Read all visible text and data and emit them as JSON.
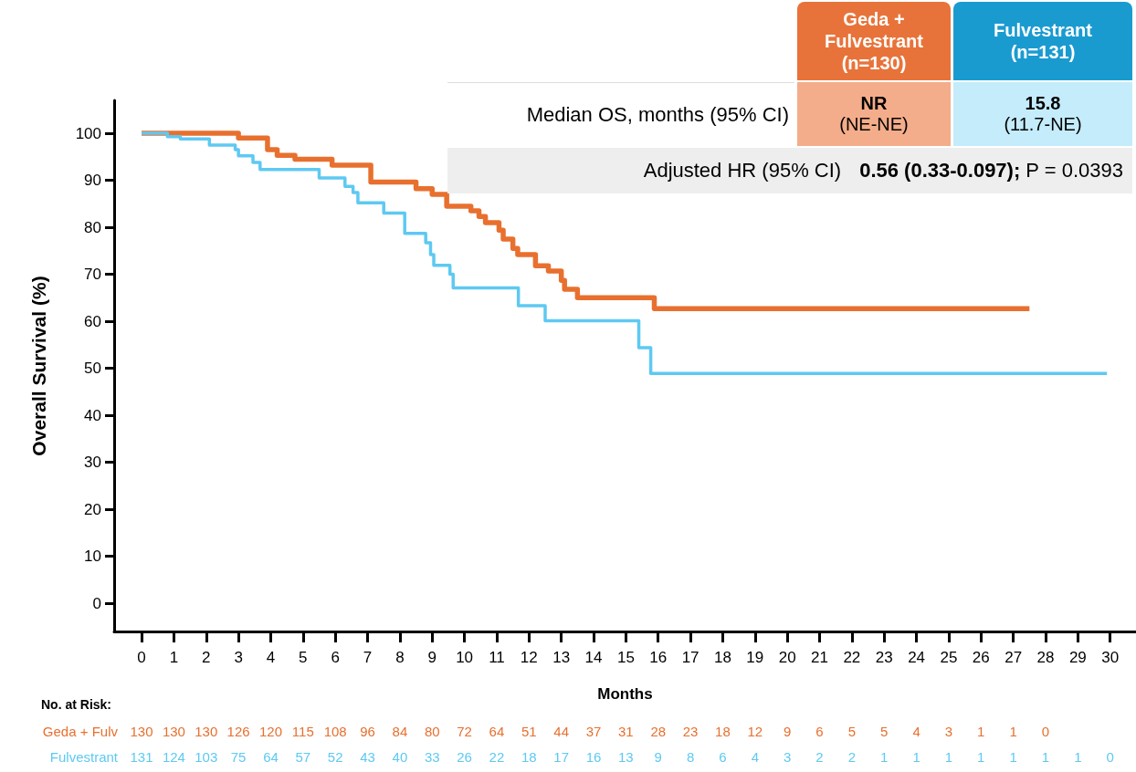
{
  "chart_data": {
    "type": "step",
    "xlabel": "Months",
    "ylabel": "Overall Survival (%)",
    "xlim": [
      -0.85,
      30.8
    ],
    "xticks": [
      0,
      1,
      2,
      3,
      4,
      5,
      6,
      7,
      8,
      9,
      10,
      11,
      12,
      13,
      14,
      15,
      16,
      17,
      18,
      19,
      20,
      21,
      22,
      23,
      24,
      25,
      26,
      27,
      28,
      29,
      30
    ],
    "ylim": [
      -6,
      107
    ],
    "yticks": [
      0,
      10,
      20,
      30,
      40,
      50,
      60,
      70,
      80,
      90,
      100
    ],
    "grid": false,
    "marker": "none",
    "line_style": "solid",
    "series": [
      {
        "color": "#e8702f",
        "x": [
          0,
          3.0,
          3.9,
          4.2,
          4.75,
          5.9,
          7.1,
          8.5,
          9.0,
          9.45,
          10.2,
          10.45,
          10.65,
          11.07,
          11.2,
          11.5,
          11.65,
          12.2,
          12.6,
          13.0,
          13.1,
          13.5,
          15.88,
          27.5
        ],
        "values": [
          100,
          99,
          96.5,
          95.3,
          94.5,
          93.2,
          89.6,
          88.2,
          87,
          84.5,
          83.5,
          82.3,
          81,
          79.4,
          77.5,
          75.5,
          74.2,
          71.8,
          70.7,
          68.7,
          66.8,
          65,
          62.7,
          62.7
        ]
      },
      {
        "color": "#5ec9f2",
        "x": [
          0,
          0.8,
          1.2,
          2.1,
          2.9,
          3.0,
          3.45,
          3.67,
          5.5,
          6.3,
          6.55,
          6.7,
          7.5,
          8.15,
          8.8,
          8.95,
          9.05,
          9.55,
          9.65,
          11.67,
          12.5,
          15.4,
          15.77,
          29.9
        ],
        "values": [
          100,
          99.3,
          98.8,
          97.5,
          96.5,
          95.2,
          93.8,
          92.3,
          90.5,
          88.7,
          87.4,
          85.2,
          83,
          78.7,
          76.7,
          74.2,
          71.9,
          70,
          67.1,
          63.3,
          60.1,
          54.4,
          48.9,
          48.9
        ]
      }
    ],
    "annotations": [
      "Geda + Fulvestrant (n=130)",
      "Fulvestrant (n=131)",
      "Median OS, months (95% CI)",
      "NR",
      "(NE-NE)",
      "15.8",
      "(11.7-NE)",
      "Adjusted HR (95% CI)",
      "0.56 (0.33-0.097); P = 0.0393",
      "No. at Risk:",
      "Geda + Fulv",
      "130 130 130 126 120 115 108 96 84 80 72 64 51 44 37 31 28 23 18 12 9 6 5 5 4 3 1 1 0",
      "Fulvestrant",
      "131 124 103 75 64 57 52 43 40 33 26 22 18 17 16 13 9 8 6 4 3 2 2 1 1 1 1 1 1 1 0"
    ]
  }
}
